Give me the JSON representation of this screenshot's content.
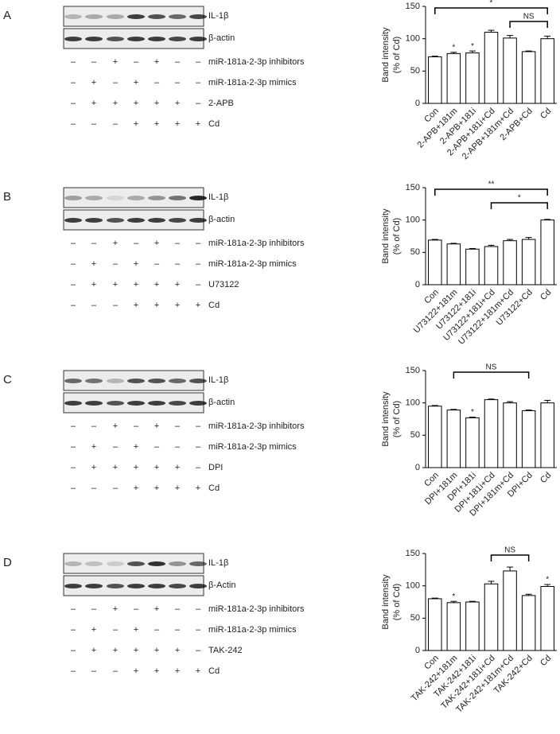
{
  "panels": [
    {
      "letter": "A",
      "blot_labels": [
        "IL-1β",
        "β-actin"
      ],
      "conditions": [
        {
          "label": "miR-181a-2-3p inhibitors",
          "signs": [
            "–",
            "–",
            "+",
            "–",
            "+",
            "–",
            "–"
          ]
        },
        {
          "label": "miR-181a-2-3p mimics",
          "signs": [
            "–",
            "+",
            "–",
            "+",
            "–",
            "–",
            "–"
          ]
        },
        {
          "label": "2-APB",
          "signs": [
            "–",
            "+",
            "+",
            "+",
            "+",
            "+",
            "–"
          ]
        },
        {
          "label": "Cd",
          "signs": [
            "–",
            "–",
            "–",
            "+",
            "+",
            "+",
            "+"
          ]
        }
      ]
    },
    {
      "letter": "B",
      "blot_labels": [
        "IL-1β",
        "β-actin"
      ],
      "conditions": [
        {
          "label": "miR-181a-2-3p inhibitors",
          "signs": [
            "–",
            "–",
            "+",
            "–",
            "+",
            "–",
            "–"
          ]
        },
        {
          "label": "miR-181a-2-3p mimics",
          "signs": [
            "–",
            "+",
            "–",
            "+",
            "–",
            "–",
            "–"
          ]
        },
        {
          "label": "U73122",
          "signs": [
            "–",
            "+",
            "+",
            "+",
            "+",
            "+",
            "–"
          ]
        },
        {
          "label": "Cd",
          "signs": [
            "–",
            "–",
            "–",
            "+",
            "+",
            "+",
            "+"
          ]
        }
      ]
    },
    {
      "letter": "C",
      "blot_labels": [
        "IL-1β",
        "β-actin"
      ],
      "conditions": [
        {
          "label": "miR-181a-2-3p inhibitors",
          "signs": [
            "–",
            "–",
            "+",
            "–",
            "+",
            "–",
            "–"
          ]
        },
        {
          "label": "miR-181a-2-3p mimics",
          "signs": [
            "–",
            "+",
            "–",
            "+",
            "–",
            "–",
            "–"
          ]
        },
        {
          "label": "DPI",
          "signs": [
            "–",
            "+",
            "+",
            "+",
            "+",
            "+",
            "–"
          ]
        },
        {
          "label": "Cd",
          "signs": [
            "–",
            "–",
            "–",
            "+",
            "+",
            "+",
            "+"
          ]
        }
      ]
    },
    {
      "letter": "D",
      "blot_labels": [
        "IL-1β",
        "β-Actin"
      ],
      "conditions": [
        {
          "label": "miR-181a-2-3p inhibitors",
          "signs": [
            "–",
            "–",
            "+",
            "–",
            "+",
            "–",
            "–"
          ]
        },
        {
          "label": "miR-181a-2-3p mimics",
          "signs": [
            "–",
            "+",
            "–",
            "+",
            "–",
            "–",
            "–"
          ]
        },
        {
          "label": "TAK-242",
          "signs": [
            "–",
            "+",
            "+",
            "+",
            "+",
            "+",
            "–"
          ]
        },
        {
          "label": "Cd",
          "signs": [
            "–",
            "–",
            "–",
            "+",
            "+",
            "+",
            "+"
          ]
        }
      ]
    }
  ],
  "chart_data": [
    {
      "type": "bar",
      "y_label": [
        "Band intensity",
        "(% of Cd)"
      ],
      "color": "#ffffff",
      "categories": [
        "Con",
        "2-APB+181m",
        "2-APB+181i",
        "2-APB+181i+Cd",
        "2-APB+181m+Cd",
        "2-APB+Cd",
        "Cd"
      ],
      "values": [
        72,
        77,
        78,
        110,
        101,
        80,
        100
      ],
      "errors": [
        1,
        2,
        3,
        3,
        4,
        1,
        4
      ],
      "ylim": [
        0,
        150
      ],
      "yticks": [
        0,
        50,
        100,
        150
      ],
      "brackets": [
        {
          "text": "*",
          "from": "Con",
          "to": "Cd"
        },
        {
          "text": "NS",
          "from": "2-APB+181m+Cd",
          "to": "Cd"
        }
      ],
      "stars": [
        {
          "text": "*",
          "at": "2-APB+181m"
        },
        {
          "text": "*",
          "at": "2-APB+181i"
        }
      ]
    },
    {
      "type": "bar",
      "y_label": [
        "Band intensity",
        "(% of Cd)"
      ],
      "color": "#ffffff",
      "categories": [
        "Con",
        "U73122+181m",
        "U73122+181i",
        "U73122+181i+Cd",
        "U73122+181m+Cd",
        "U73122+Cd",
        "Cd"
      ],
      "values": [
        69,
        63,
        55,
        59,
        68,
        70,
        100
      ],
      "errors": [
        1,
        1,
        1,
        2,
        2,
        3,
        1
      ],
      "ylim": [
        0,
        150
      ],
      "yticks": [
        0,
        50,
        100,
        150
      ],
      "brackets": [
        {
          "text": "**",
          "from": "Con",
          "to": "Cd"
        },
        {
          "text": "*",
          "from": "U73122+181i+Cd",
          "to": "Cd"
        }
      ],
      "stars": []
    },
    {
      "type": "bar",
      "y_label": [
        "Band intensity",
        "(% of Cd)"
      ],
      "color": "#ffffff",
      "categories": [
        "Con",
        "DPI+181m",
        "DPI+181i",
        "DPI+181i+Cd",
        "DPI+181m+Cd",
        "DPI+Cd",
        "Cd"
      ],
      "values": [
        95,
        89,
        77,
        105,
        100,
        88,
        100
      ],
      "errors": [
        1,
        1,
        1,
        1,
        2,
        1,
        4
      ],
      "ylim": [
        0,
        150
      ],
      "yticks": [
        0,
        50,
        100,
        150
      ],
      "brackets": [
        {
          "text": "NS",
          "from": "DPI+181m",
          "to": "DPI+Cd"
        }
      ],
      "stars": [
        {
          "text": "*",
          "at": "DPI+181i"
        }
      ]
    },
    {
      "type": "bar",
      "y_label": [
        "Band intensity",
        "(% of Cd)"
      ],
      "color": "#ffffff",
      "categories": [
        "Con",
        "TAK-242+181m",
        "TAK-242+181i",
        "TAK-242+181i+Cd",
        "TAK-242+181m+Cd",
        "TAK-242+Cd",
        "Cd"
      ],
      "values": [
        80,
        74,
        75,
        103,
        123,
        85,
        99
      ],
      "errors": [
        1,
        2,
        1,
        4,
        6,
        2,
        3
      ],
      "ylim": [
        0,
        150
      ],
      "yticks": [
        0,
        50,
        100,
        150
      ],
      "brackets": [
        {
          "text": "NS",
          "from": "TAK-242+181i+Cd",
          "to": "TAK-242+Cd"
        }
      ],
      "stars": [
        {
          "text": "*",
          "at": "TAK-242+181m"
        },
        {
          "text": "*",
          "at": "Cd"
        }
      ]
    }
  ]
}
